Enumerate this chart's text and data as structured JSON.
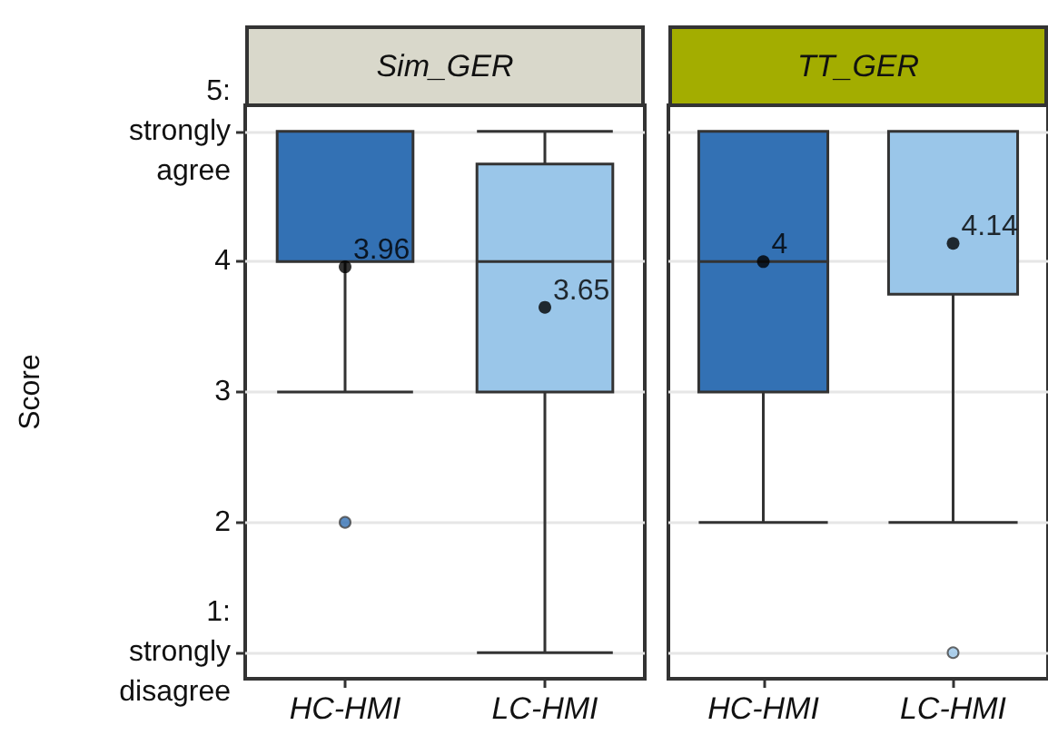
{
  "chart_data": [
    {
      "type": "box",
      "title": "Sim_GER",
      "ylabel": "Score",
      "categories": [
        "HC-HMI",
        "LC-HMI"
      ],
      "colors": [
        "#3371b4",
        "#9ac6e9"
      ],
      "boxes": [
        {
          "low": 3,
          "q1": 4,
          "median": 4,
          "q3": 5,
          "high": 5,
          "mean": 3.96,
          "outliers": [
            2
          ]
        },
        {
          "low": 1,
          "q1": 3,
          "median": 4,
          "q3": 4.75,
          "high": 5,
          "mean": 3.65
        }
      ],
      "value_labels": [
        "3.96",
        "3.65"
      ],
      "ylim": [
        0.8,
        5.2
      ],
      "yticks": [
        {
          "value": 1,
          "label": "1:\nstrongly\ndisagree"
        },
        2,
        3,
        4,
        {
          "value": 5,
          "label": "5:\nstrongly\nagree"
        }
      ],
      "grid": "y"
    },
    {
      "type": "box",
      "title": "TT_GER",
      "categories": [
        "HC-HMI",
        "LC-HMI"
      ],
      "colors": [
        "#3371b4",
        "#9ac6e9"
      ],
      "boxes": [
        {
          "low": 2,
          "q1": 3,
          "median": 4,
          "q3": 5,
          "high": 5,
          "mean": 4
        },
        {
          "low": 2,
          "q1": 3.75,
          "median": 5,
          "q3": 5,
          "high": 5,
          "mean": 4.14,
          "outliers": [
            1
          ]
        }
      ],
      "value_labels": [
        "4",
        "4.14"
      ],
      "ylim": [
        0.8,
        5.2
      ],
      "yticks": [
        1,
        2,
        3,
        4,
        5
      ],
      "grid": "y",
      "tick_labels": "x"
    }
  ]
}
